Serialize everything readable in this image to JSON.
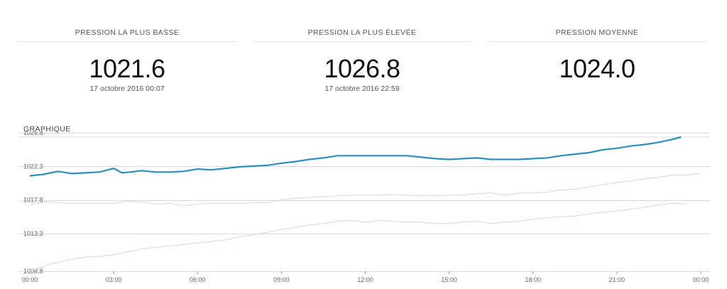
{
  "stats": {
    "min": {
      "label": "PRESSION LA PLUS BASSE",
      "value": "1021.6",
      "date": "17 octobre 2016 00:07"
    },
    "max": {
      "label": "PRESSION LA PLUS ÉLEVÉE",
      "value": "1026.8",
      "date": "17 octobre 2016 22:59"
    },
    "avg": {
      "label": "PRESSION MOYENNE",
      "value": "1024.0"
    }
  },
  "section_title": "GRAPHIQUE",
  "colors": {
    "primary": "#2a8fc0",
    "secondary": "#e5cfd3",
    "grid": "#dddddd",
    "text": "#666666"
  },
  "chart_data": {
    "type": "line",
    "x_ticks": [
      "00:00",
      "03:00",
      "06:00",
      "09:00",
      "12:00",
      "15:00",
      "18:00",
      "21:00",
      "00:00"
    ],
    "y_ticks": [
      "1008.8",
      "1013.3",
      "1017.8",
      "1022.3",
      "1026.8"
    ],
    "xlim": [
      0,
      24
    ],
    "ylim": [
      1008.8,
      1026.8
    ],
    "grid": true,
    "series": [
      {
        "style": "primary",
        "x": [
          0,
          0.5,
          1,
          1.5,
          2,
          2.5,
          3,
          3.3,
          3.6,
          4,
          4.5,
          5,
          5.5,
          6,
          6.5,
          7,
          7.5,
          8,
          8.5,
          9,
          9.5,
          10,
          10.5,
          11,
          11.5,
          12,
          12.5,
          13,
          13.5,
          14,
          14.5,
          15,
          15.5,
          16,
          16.5,
          17,
          17.5,
          18,
          18.5,
          19,
          19.5,
          20,
          20.5,
          21,
          21.5,
          22,
          22.5,
          23,
          23.3
        ],
        "y": [
          1021.6,
          1021.8,
          1022.2,
          1021.9,
          1022.0,
          1022.1,
          1022.6,
          1022.0,
          1022.1,
          1022.3,
          1022.1,
          1022.1,
          1022.2,
          1022.5,
          1022.4,
          1022.6,
          1022.8,
          1022.9,
          1023.0,
          1023.3,
          1023.5,
          1023.8,
          1024.0,
          1024.3,
          1024.3,
          1024.3,
          1024.3,
          1024.3,
          1024.3,
          1024.1,
          1023.9,
          1023.8,
          1023.9,
          1024.0,
          1023.8,
          1023.8,
          1023.8,
          1023.9,
          1024.0,
          1024.3,
          1024.5,
          1024.7,
          1025.1,
          1025.3,
          1025.6,
          1025.8,
          1026.1,
          1026.5,
          1026.8
        ]
      },
      {
        "style": "secondary",
        "x": [
          0,
          0.5,
          1,
          1.5,
          2,
          2.5,
          3,
          3.5,
          4,
          4.5,
          5,
          5.5,
          6,
          6.5,
          7,
          7.5,
          8,
          8.5,
          9,
          9.5,
          10,
          10.5,
          11,
          11.5,
          12,
          12.5,
          13,
          13.5,
          14,
          14.5,
          15,
          15.5,
          16,
          16.5,
          17,
          17.5,
          18,
          18.5,
          19,
          19.5,
          20,
          20.5,
          21,
          21.5,
          22,
          22.5,
          23,
          23.5,
          24
        ],
        "y": [
          1017.7,
          1018.1,
          1018.0,
          1017.9,
          1017.9,
          1017.9,
          1017.9,
          1018.2,
          1018.1,
          1017.8,
          1017.9,
          1017.6,
          1017.8,
          1017.9,
          1017.9,
          1017.9,
          1018.0,
          1018.0,
          1018.4,
          1018.6,
          1018.7,
          1018.8,
          1018.9,
          1019.0,
          1019.0,
          1019.0,
          1019.1,
          1019.0,
          1018.9,
          1018.9,
          1019.0,
          1019.0,
          1019.2,
          1019.3,
          1019.0,
          1019.3,
          1019.3,
          1019.4,
          1019.7,
          1019.8,
          1020.1,
          1020.4,
          1020.7,
          1020.9,
          1021.2,
          1021.4,
          1021.7,
          1021.7,
          1021.9
        ]
      },
      {
        "style": "secondary",
        "x": [
          0,
          0.5,
          1,
          1.5,
          2,
          2.5,
          3,
          3.5,
          4,
          4.5,
          5,
          5.5,
          6,
          6.5,
          7,
          7.5,
          8,
          8.5,
          9,
          9.5,
          10,
          10.5,
          11,
          11.5,
          12,
          12.5,
          13,
          13.5,
          14,
          14.5,
          15,
          15.5,
          16,
          16.5,
          17,
          17.5,
          18,
          18.5,
          19,
          19.5,
          20,
          20.5,
          21,
          21.5,
          22,
          22.5,
          23,
          23.5
        ],
        "y": [
          1008.8,
          1009.5,
          1010.0,
          1010.4,
          1010.7,
          1010.8,
          1011.0,
          1011.4,
          1011.8,
          1012.0,
          1012.2,
          1012.4,
          1012.6,
          1012.8,
          1013.0,
          1013.4,
          1013.7,
          1014.0,
          1014.4,
          1014.7,
          1015.0,
          1015.2,
          1015.5,
          1015.6,
          1015.4,
          1015.6,
          1015.5,
          1015.4,
          1015.4,
          1015.2,
          1015.2,
          1015.4,
          1015.5,
          1015.2,
          1015.4,
          1015.5,
          1015.8,
          1016.0,
          1016.1,
          1016.2,
          1016.5,
          1016.7,
          1016.9,
          1017.1,
          1017.4,
          1017.7,
          1017.9,
          1017.8
        ]
      }
    ]
  }
}
